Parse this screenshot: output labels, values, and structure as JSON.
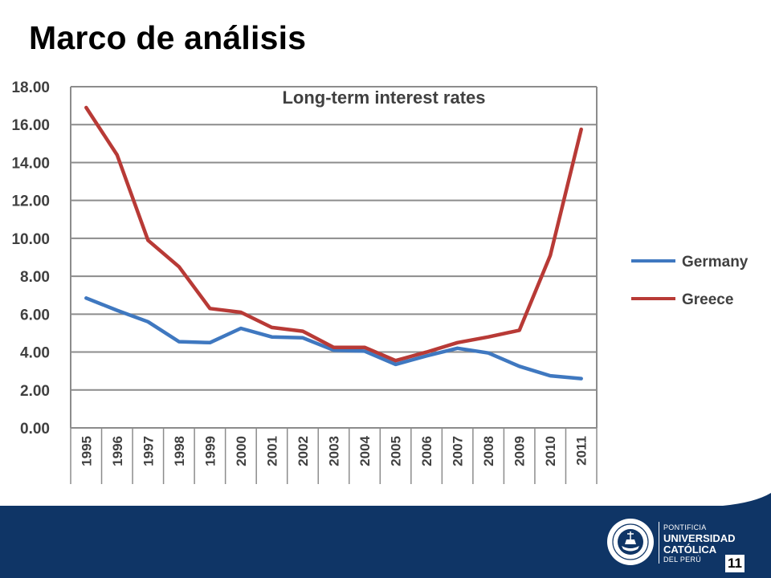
{
  "slide": {
    "title": "Marco de análisis",
    "page_number": "11"
  },
  "logo": {
    "line1": "PONTIFICIA",
    "line2": "UNIVERSIDAD",
    "line3": "CATÓLICA",
    "line4": "DEL PERÚ",
    "seal_text": "ET LUX IN TENEBRIS LUCET",
    "seal_year": "MCMXVII"
  },
  "colors": {
    "footer": "#0f3566",
    "germany": "#3f78c0",
    "greece": "#b83a36",
    "grid": "#8c8c8c"
  },
  "chart_data": {
    "type": "line",
    "title": "Long-term interest rates",
    "xlabel": "",
    "ylabel": "",
    "categories": [
      "1995",
      "1996",
      "1997",
      "1998",
      "1999",
      "2000",
      "2001",
      "2002",
      "2003",
      "2004",
      "2005",
      "2006",
      "2007",
      "2008",
      "2009",
      "2010",
      "2011"
    ],
    "ylim": [
      0,
      18
    ],
    "yticks": [
      "0.00",
      "2.00",
      "4.00",
      "6.00",
      "8.00",
      "10.00",
      "12.00",
      "14.00",
      "16.00",
      "18.00"
    ],
    "grid": true,
    "legend_position": "right",
    "series": [
      {
        "name": "Germany",
        "color": "#3f78c0",
        "values": [
          6.85,
          6.2,
          5.6,
          4.55,
          4.5,
          5.25,
          4.8,
          4.75,
          4.1,
          4.05,
          3.35,
          3.8,
          4.2,
          3.95,
          3.25,
          2.75,
          2.6
        ]
      },
      {
        "name": "Greece",
        "color": "#b83a36",
        "values": [
          16.9,
          14.4,
          9.9,
          8.5,
          6.3,
          6.1,
          5.3,
          5.1,
          4.25,
          4.25,
          3.55,
          4.0,
          4.5,
          4.8,
          5.15,
          9.1,
          15.75
        ]
      }
    ]
  }
}
